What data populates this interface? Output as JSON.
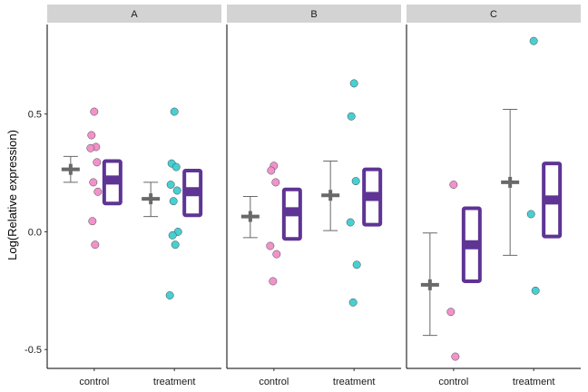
{
  "chart_data": {
    "type": "faceted-strip",
    "ylabel": "Log(Relative expression)",
    "xlabel": "",
    "ylim": [
      -0.58,
      0.88
    ],
    "yticks": [
      0.5,
      0.0,
      -0.5
    ],
    "ytick_labels": [
      "0.5",
      "0.0",
      "-0.5"
    ],
    "groups": [
      "control",
      "treatment"
    ],
    "colors": {
      "control_points": "#F08CC8",
      "treatment_points": "#3ECCD0",
      "mean_marker": "#696969",
      "box_outline": "#5E3494",
      "strip_background": "#D3D3D3",
      "axis": "#000000"
    },
    "panels": [
      {
        "label": "A",
        "groups": [
          {
            "name": "control",
            "mean": 0.265,
            "ci_low": 0.21,
            "ci_high": 0.32,
            "box_low": 0.12,
            "box_mid": 0.22,
            "box_high": 0.3,
            "points": [
              0.51,
              0.41,
              0.36,
              0.355,
              0.295,
              0.21,
              0.17,
              0.045,
              -0.055
            ]
          },
          {
            "name": "treatment",
            "mean": 0.14,
            "ci_low": 0.065,
            "ci_high": 0.21,
            "box_low": 0.07,
            "box_mid": 0.17,
            "box_high": 0.26,
            "points": [
              0.51,
              0.29,
              0.275,
              0.2,
              0.175,
              0.13,
              0.0,
              -0.015,
              -0.055,
              -0.27
            ]
          }
        ]
      },
      {
        "label": "B",
        "groups": [
          {
            "name": "control",
            "mean": 0.065,
            "ci_low": -0.025,
            "ci_high": 0.15,
            "box_low": -0.03,
            "box_mid": 0.085,
            "box_high": 0.18,
            "points": [
              0.28,
              0.26,
              0.21,
              -0.06,
              -0.095,
              -0.21
            ]
          },
          {
            "name": "treatment",
            "mean": 0.155,
            "ci_low": 0.005,
            "ci_high": 0.3,
            "box_low": 0.03,
            "box_mid": 0.15,
            "box_high": 0.265,
            "points": [
              0.63,
              0.49,
              0.215,
              0.04,
              -0.14,
              -0.3
            ]
          }
        ]
      },
      {
        "label": "C",
        "groups": [
          {
            "name": "control",
            "mean": -0.225,
            "ci_low": -0.44,
            "ci_high": -0.005,
            "box_low": -0.21,
            "box_mid": -0.055,
            "box_high": 0.1,
            "points": [
              0.2,
              -0.34,
              -0.53
            ]
          },
          {
            "name": "treatment",
            "mean": 0.21,
            "ci_low": -0.1,
            "ci_high": 0.52,
            "box_low": -0.02,
            "box_mid": 0.135,
            "box_high": 0.29,
            "points": [
              0.81,
              0.075,
              -0.25
            ]
          }
        ]
      }
    ]
  }
}
